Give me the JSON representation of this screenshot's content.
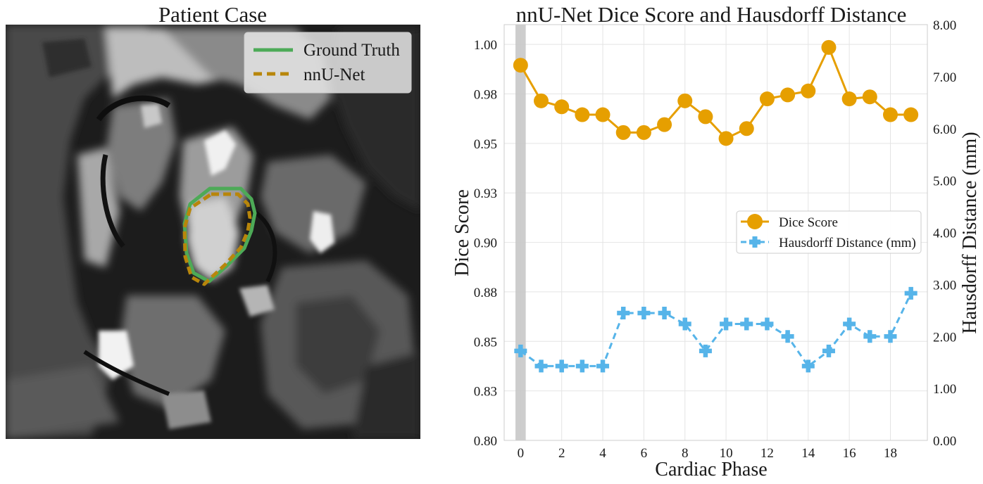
{
  "panels": {
    "left": {
      "title": "Patient Case",
      "legend": [
        {
          "label": "Ground Truth",
          "color": "#4daa57",
          "dash": "solid"
        },
        {
          "label": "nnU-Net",
          "color": "#b8860b",
          "dash": "dashed"
        }
      ]
    }
  },
  "chart_data": {
    "type": "line",
    "title": "nnU-Net Dice Score and Hausdorff Distance",
    "xlabel": "Cardiac Phase",
    "ylabel": "Dice Score",
    "y2label": "Hausdorff Distance (mm)",
    "xlim": [
      -0.8,
      19.8
    ],
    "ylim": [
      0.8,
      1.01
    ],
    "y2lim": [
      0.0,
      8.0
    ],
    "x_ticks": [
      0,
      2,
      4,
      6,
      8,
      10,
      12,
      14,
      16,
      18
    ],
    "y_ticks": [
      0.8,
      0.825,
      0.85,
      0.875,
      0.9,
      0.925,
      0.95,
      0.975,
      1.0
    ],
    "y_tick_labels": [
      "0.80",
      "0.83",
      "0.85",
      "0.88",
      "0.90",
      "0.93",
      "0.95",
      "0.98",
      "1.00"
    ],
    "y2_ticks": [
      0,
      1,
      2,
      3,
      4,
      5,
      6,
      7,
      8
    ],
    "y2_tick_labels": [
      "0.00",
      "1.00",
      "2.00",
      "3.00",
      "4.00",
      "5.00",
      "6.00",
      "7.00",
      "8.00"
    ],
    "highlight_x": 0,
    "grid": true,
    "legend_position": "center-right",
    "x": [
      0,
      1,
      2,
      3,
      4,
      5,
      6,
      7,
      8,
      9,
      10,
      11,
      12,
      13,
      14,
      15,
      16,
      17,
      18,
      19
    ],
    "series": [
      {
        "name": "Dice Score",
        "axis": "left",
        "color": "#e69f00",
        "marker": "circle",
        "dash": "solid",
        "values": [
          0.9895,
          0.9715,
          0.9685,
          0.9645,
          0.9645,
          0.9555,
          0.9555,
          0.9595,
          0.9715,
          0.9635,
          0.9525,
          0.9575,
          0.9725,
          0.9745,
          0.9765,
          0.9985,
          0.9725,
          0.9735,
          0.9645,
          0.9645
        ]
      },
      {
        "name": "Hausdorff Distance (mm)",
        "axis": "right",
        "color": "#56b4e9",
        "marker": "plus",
        "dash": "dashed",
        "values": [
          1.72,
          1.43,
          1.43,
          1.43,
          1.43,
          2.45,
          2.45,
          2.45,
          2.24,
          1.72,
          2.24,
          2.24,
          2.24,
          2.0,
          1.43,
          1.72,
          2.24,
          2.0,
          2.0,
          2.83
        ]
      }
    ]
  }
}
